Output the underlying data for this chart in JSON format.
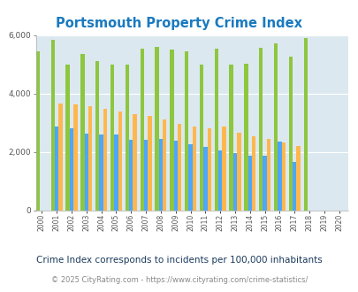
{
  "title": "Portsmouth Property Crime Index",
  "years": [
    2000,
    2001,
    2002,
    2003,
    2004,
    2005,
    2006,
    2007,
    2008,
    2009,
    2010,
    2011,
    2012,
    2013,
    2014,
    2015,
    2016,
    2017,
    2018,
    2019,
    2020
  ],
  "portsmouth": [
    5450,
    5850,
    4980,
    5340,
    5100,
    5000,
    5000,
    5540,
    5580,
    5490,
    5430,
    5000,
    5520,
    5000,
    5020,
    5560,
    5730,
    5250,
    5890,
    0,
    0
  ],
  "virginia": [
    0,
    2870,
    2810,
    2620,
    2590,
    2590,
    2420,
    2420,
    2450,
    2370,
    2270,
    2180,
    2050,
    1960,
    1880,
    1870,
    2360,
    1660,
    0,
    0,
    0
  ],
  "national": [
    0,
    3660,
    3630,
    3570,
    3480,
    3370,
    3280,
    3230,
    3100,
    2970,
    2860,
    2820,
    2870,
    2640,
    2540,
    2440,
    2310,
    2190,
    0,
    0,
    0
  ],
  "portsmouth_color": "#8dc63f",
  "virginia_color": "#4da6ff",
  "national_color": "#ffb74d",
  "chart_bg": "#dce8f0",
  "ylim": [
    0,
    6000
  ],
  "yticks": [
    0,
    2000,
    4000,
    6000
  ],
  "subtitle": "Crime Index corresponds to incidents per 100,000 inhabitants",
  "footer": "© 2025 CityRating.com - https://www.cityrating.com/crime-statistics/",
  "title_color": "#1a7abf",
  "subtitle_color": "#1a3a5c",
  "footer_color": "#888888",
  "footer_link_color": "#4488cc"
}
